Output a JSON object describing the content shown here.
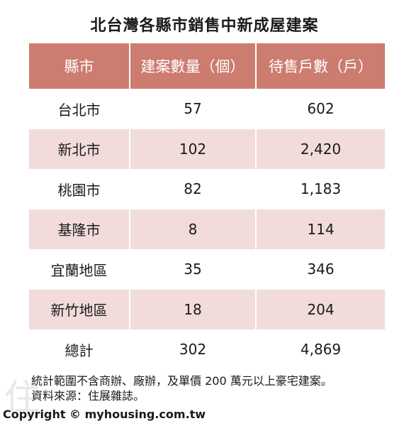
{
  "title": "北台灣各縣市銷售中新成屋建案",
  "chart_data": {
    "type": "table",
    "title": "北台灣各縣市銷售中新成屋建案",
    "columns": [
      "縣市",
      "建案數量（個）",
      "待售戶數（戶）"
    ],
    "rows": [
      [
        "台北市",
        "57",
        "602"
      ],
      [
        "新北市",
        "102",
        "2,420"
      ],
      [
        "桃園市",
        "82",
        "1,183"
      ],
      [
        "基隆市",
        "8",
        "114"
      ],
      [
        "宜蘭地區",
        "35",
        "346"
      ],
      [
        "新竹地區",
        "18",
        "204"
      ],
      [
        "總計",
        "302",
        "4,869"
      ]
    ]
  },
  "notes": [
    "統計範圍不含商辦、廠辦，及單價 200 萬元以上豪宅建案。",
    "資料來源：住展雜誌。"
  ],
  "copyright": "Copyright © myhousing.com.tw",
  "colors": {
    "header_bg": "#cd7c70",
    "shaded_row_bg": "#f1dcdb"
  }
}
